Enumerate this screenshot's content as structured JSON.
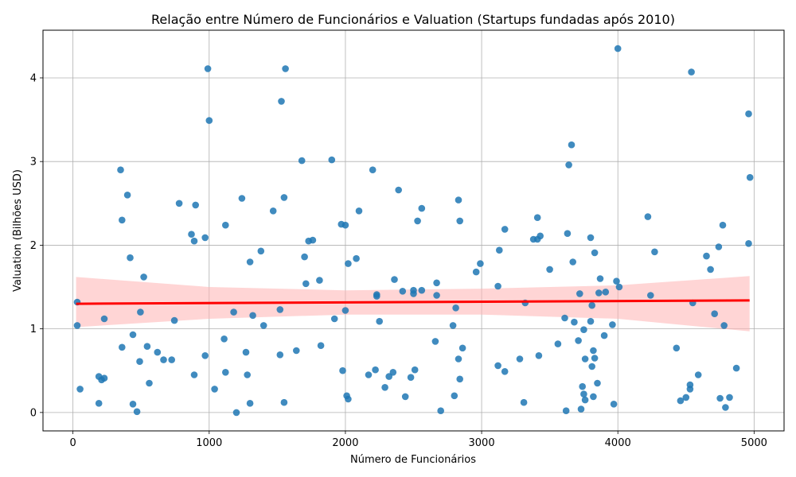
{
  "chart_data": {
    "type": "scatter",
    "title": "Relação entre Número de Funcionários e Valuation (Startups fundadas após 2010)",
    "xlabel": "Número de Funcionários",
    "ylabel": "Valuation (Bilhões USD)",
    "xlim": [
      -220,
      5220
    ],
    "ylim": [
      -0.22,
      4.57
    ],
    "xticks": [
      0,
      1000,
      2000,
      3000,
      4000,
      5000
    ],
    "yticks": [
      0,
      1,
      2,
      3,
      4
    ],
    "grid": true,
    "colors": {
      "points": "#1f77b4",
      "regression": "#ff0000",
      "band": "#ffb3b3"
    },
    "regression": {
      "x": [
        23,
        4967
      ],
      "y": [
        1.3,
        1.34
      ]
    },
    "confidence_band": {
      "x": [
        23,
        1000,
        2000,
        3000,
        4000,
        4967
      ],
      "upper": [
        1.62,
        1.5,
        1.46,
        1.48,
        1.52,
        1.63
      ],
      "lower": [
        1.02,
        1.12,
        1.17,
        1.17,
        1.12,
        0.97
      ]
    },
    "points": [
      [
        31,
        1.32
      ],
      [
        31,
        1.04
      ],
      [
        52,
        0.28
      ],
      [
        190,
        0.43
      ],
      [
        190,
        0.11
      ],
      [
        210,
        0.39
      ],
      [
        230,
        0.41
      ],
      [
        230,
        1.12
      ],
      [
        350,
        2.9
      ],
      [
        360,
        2.3
      ],
      [
        360,
        0.78
      ],
      [
        400,
        2.6
      ],
      [
        420,
        1.85
      ],
      [
        440,
        0.93
      ],
      [
        440,
        0.1
      ],
      [
        470,
        0.01
      ],
      [
        490,
        0.61
      ],
      [
        495,
        1.2
      ],
      [
        520,
        1.62
      ],
      [
        545,
        0.79
      ],
      [
        560,
        0.35
      ],
      [
        620,
        0.72
      ],
      [
        665,
        0.63
      ],
      [
        725,
        0.63
      ],
      [
        745,
        1.1
      ],
      [
        780,
        2.5
      ],
      [
        870,
        2.13
      ],
      [
        890,
        2.05
      ],
      [
        890,
        0.45
      ],
      [
        900,
        2.48
      ],
      [
        970,
        2.09
      ],
      [
        970,
        0.68
      ],
      [
        990,
        4.11
      ],
      [
        1000,
        3.49
      ],
      [
        1040,
        0.28
      ],
      [
        1110,
        0.88
      ],
      [
        1120,
        2.24
      ],
      [
        1120,
        0.48
      ],
      [
        1180,
        1.2
      ],
      [
        1200,
        0.0
      ],
      [
        1240,
        2.56
      ],
      [
        1270,
        0.72
      ],
      [
        1280,
        0.45
      ],
      [
        1300,
        1.8
      ],
      [
        1300,
        0.11
      ],
      [
        1320,
        1.16
      ],
      [
        1380,
        1.93
      ],
      [
        1400,
        1.04
      ],
      [
        1470,
        2.41
      ],
      [
        1520,
        1.23
      ],
      [
        1520,
        0.69
      ],
      [
        1530,
        3.72
      ],
      [
        1550,
        2.57
      ],
      [
        1550,
        0.12
      ],
      [
        1560,
        4.11
      ],
      [
        1640,
        0.74
      ],
      [
        1680,
        3.01
      ],
      [
        1700,
        1.86
      ],
      [
        1710,
        1.54
      ],
      [
        1730,
        2.05
      ],
      [
        1760,
        2.06
      ],
      [
        1810,
        1.58
      ],
      [
        1820,
        0.8
      ],
      [
        1900,
        3.02
      ],
      [
        1920,
        1.12
      ],
      [
        1970,
        2.25
      ],
      [
        1980,
        0.5
      ],
      [
        2000,
        2.24
      ],
      [
        2000,
        1.22
      ],
      [
        2010,
        0.2
      ],
      [
        2020,
        0.16
      ],
      [
        2020,
        1.78
      ],
      [
        2080,
        1.84
      ],
      [
        2100,
        2.41
      ],
      [
        2170,
        0.45
      ],
      [
        2200,
        2.9
      ],
      [
        2220,
        0.51
      ],
      [
        2230,
        1.41
      ],
      [
        2230,
        1.39
      ],
      [
        2250,
        1.09
      ],
      [
        2290,
        0.3
      ],
      [
        2320,
        0.43
      ],
      [
        2350,
        0.48
      ],
      [
        2360,
        1.59
      ],
      [
        2390,
        2.66
      ],
      [
        2420,
        1.45
      ],
      [
        2440,
        0.19
      ],
      [
        2480,
        0.42
      ],
      [
        2500,
        1.46
      ],
      [
        2500,
        1.42
      ],
      [
        2510,
        0.51
      ],
      [
        2530,
        2.29
      ],
      [
        2560,
        2.44
      ],
      [
        2560,
        1.46
      ],
      [
        2660,
        0.85
      ],
      [
        2670,
        1.55
      ],
      [
        2670,
        1.4
      ],
      [
        2700,
        0.02
      ],
      [
        2790,
        1.04
      ],
      [
        2800,
        0.2
      ],
      [
        2810,
        1.25
      ],
      [
        2830,
        0.64
      ],
      [
        2830,
        2.54
      ],
      [
        2840,
        2.29
      ],
      [
        2840,
        0.4
      ],
      [
        2860,
        0.77
      ],
      [
        2960,
        1.68
      ],
      [
        2990,
        1.78
      ],
      [
        3120,
        1.51
      ],
      [
        3120,
        0.56
      ],
      [
        3130,
        1.94
      ],
      [
        3170,
        2.19
      ],
      [
        3170,
        0.49
      ],
      [
        3280,
        0.64
      ],
      [
        3310,
        0.12
      ],
      [
        3320,
        1.31
      ],
      [
        3380,
        2.07
      ],
      [
        3410,
        2.33
      ],
      [
        3410,
        2.07
      ],
      [
        3420,
        0.68
      ],
      [
        3430,
        2.11
      ],
      [
        3500,
        1.71
      ],
      [
        3560,
        0.82
      ],
      [
        3610,
        1.13
      ],
      [
        3620,
        0.02
      ],
      [
        3630,
        2.14
      ],
      [
        3640,
        2.96
      ],
      [
        3660,
        3.2
      ],
      [
        3670,
        1.8
      ],
      [
        3680,
        1.08
      ],
      [
        3710,
        0.86
      ],
      [
        3720,
        1.42
      ],
      [
        3730,
        0.04
      ],
      [
        3740,
        0.31
      ],
      [
        3750,
        0.99
      ],
      [
        3750,
        0.22
      ],
      [
        3760,
        0.64
      ],
      [
        3760,
        0.15
      ],
      [
        3800,
        2.09
      ],
      [
        3800,
        1.09
      ],
      [
        3810,
        0.55
      ],
      [
        3810,
        1.28
      ],
      [
        3820,
        0.74
      ],
      [
        3820,
        0.19
      ],
      [
        3830,
        1.91
      ],
      [
        3830,
        0.65
      ],
      [
        3850,
        0.35
      ],
      [
        3860,
        1.43
      ],
      [
        3870,
        1.6
      ],
      [
        3900,
        0.92
      ],
      [
        3910,
        1.44
      ],
      [
        3960,
        1.05
      ],
      [
        3970,
        0.1
      ],
      [
        3990,
        1.57
      ],
      [
        4000,
        4.35
      ],
      [
        4010,
        1.5
      ],
      [
        4220,
        2.34
      ],
      [
        4240,
        1.4
      ],
      [
        4270,
        1.92
      ],
      [
        4430,
        0.77
      ],
      [
        4460,
        0.14
      ],
      [
        4500,
        0.18
      ],
      [
        4530,
        0.33
      ],
      [
        4530,
        0.28
      ],
      [
        4540,
        4.07
      ],
      [
        4550,
        1.31
      ],
      [
        4590,
        0.45
      ],
      [
        4650,
        1.87
      ],
      [
        4680,
        1.71
      ],
      [
        4710,
        1.18
      ],
      [
        4740,
        1.98
      ],
      [
        4750,
        0.17
      ],
      [
        4770,
        2.24
      ],
      [
        4780,
        1.04
      ],
      [
        4790,
        0.06
      ],
      [
        4820,
        0.18
      ],
      [
        4870,
        0.53
      ],
      [
        4960,
        3.57
      ],
      [
        4960,
        2.02
      ],
      [
        4970,
        2.81
      ]
    ]
  }
}
